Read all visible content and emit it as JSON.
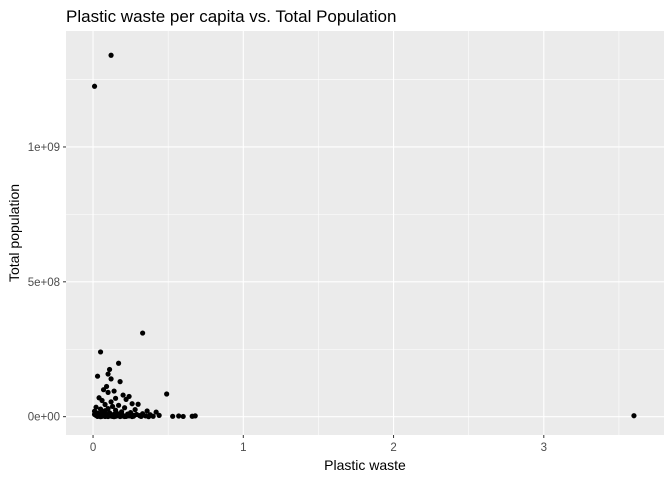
{
  "chart_data": {
    "type": "scatter",
    "title": "Plastic waste per capita vs. Total Population",
    "xlabel": "Plastic waste",
    "ylabel": "Total population",
    "xlim": [
      -0.18,
      3.8
    ],
    "ylim": [
      -68000000,
      1430000000
    ],
    "x_ticks": [
      0,
      1,
      2,
      3
    ],
    "x_tick_labels": [
      "0",
      "1",
      "2",
      "3"
    ],
    "y_ticks": [
      0,
      500000000,
      1000000000
    ],
    "y_tick_labels": [
      "0e+00",
      "5e+08",
      "1e+09"
    ],
    "grid": true,
    "legend": "none",
    "colors": {
      "panel": "#ebebeb",
      "grid_major": "#ffffff",
      "point": "#000000",
      "tick_label": "#4d4d4d"
    },
    "points": [
      [
        0.01,
        1225000000
      ],
      [
        0.12,
        1340000000
      ],
      [
        0.33,
        310000000
      ],
      [
        0.05,
        240000000
      ],
      [
        0.49,
        84000000
      ],
      [
        0.17,
        198000000
      ],
      [
        0.11,
        175000000
      ],
      [
        0.03,
        150000000
      ],
      [
        0.1,
        158000000
      ],
      [
        0.12,
        140000000
      ],
      [
        0.18,
        130000000
      ],
      [
        0.09,
        112000000
      ],
      [
        0.07,
        100000000
      ],
      [
        0.14,
        95000000
      ],
      [
        0.1,
        90000000
      ],
      [
        0.2,
        80000000
      ],
      [
        0.24,
        75000000
      ],
      [
        0.04,
        70000000
      ],
      [
        0.15,
        68000000
      ],
      [
        0.22,
        64000000
      ],
      [
        0.06,
        60000000
      ],
      [
        0.12,
        55000000
      ],
      [
        0.26,
        48000000
      ],
      [
        0.3,
        46000000
      ],
      [
        0.08,
        45000000
      ],
      [
        0.17,
        42000000
      ],
      [
        0.13,
        38000000
      ],
      [
        0.02,
        35000000
      ],
      [
        0.21,
        33000000
      ],
      [
        0.1,
        30000000
      ],
      [
        0.05,
        28000000
      ],
      [
        0.28,
        26000000
      ],
      [
        0.15,
        24000000
      ],
      [
        0.08,
        22000000
      ],
      [
        0.36,
        21000000
      ],
      [
        0.01,
        20000000
      ],
      [
        0.19,
        18000000
      ],
      [
        0.42,
        17000000
      ],
      [
        0.06,
        16000000
      ],
      [
        0.25,
        15000000
      ],
      [
        0.11,
        14000000
      ],
      [
        0.03,
        13000000
      ],
      [
        0.16,
        12000000
      ],
      [
        0.33,
        11000000
      ],
      [
        0.07,
        10000000
      ],
      [
        0.23,
        9500000
      ],
      [
        0.14,
        9000000
      ],
      [
        0.01,
        8500000
      ],
      [
        0.29,
        8000000
      ],
      [
        0.09,
        7500000
      ],
      [
        0.38,
        7000000
      ],
      [
        0.18,
        6500000
      ],
      [
        0.05,
        6000000
      ],
      [
        0.13,
        5500000
      ],
      [
        0.27,
        5000000
      ],
      [
        0.44,
        4800000
      ],
      [
        0.02,
        4500000
      ],
      [
        0.2,
        4200000
      ],
      [
        0.11,
        4000000
      ],
      [
        0.31,
        3800000
      ],
      [
        0.07,
        3500000
      ],
      [
        0.16,
        3200000
      ],
      [
        0.24,
        3000000
      ],
      [
        0.04,
        2800000
      ],
      [
        0.35,
        2600000
      ],
      [
        0.12,
        2400000
      ],
      [
        0.19,
        2200000
      ],
      [
        0.09,
        2000000
      ],
      [
        0.27,
        1800000
      ],
      [
        0.4,
        1600000
      ],
      [
        0.06,
        1500000
      ],
      [
        0.15,
        1300000
      ],
      [
        0.22,
        1100000
      ],
      [
        0.03,
        1000000
      ],
      [
        0.13,
        900000
      ],
      [
        0.32,
        800000
      ],
      [
        0.08,
        700000
      ],
      [
        0.18,
        600000
      ],
      [
        0.26,
        500000
      ],
      [
        0.1,
        400000
      ],
      [
        0.21,
        300000
      ],
      [
        0.05,
        200000
      ],
      [
        0.14,
        100000
      ],
      [
        0.37,
        50000
      ],
      [
        0.53,
        1200000
      ],
      [
        0.57,
        2500000
      ],
      [
        0.6,
        900000
      ],
      [
        0.66,
        1500000
      ],
      [
        0.68,
        3000000
      ],
      [
        3.6,
        3500000
      ]
    ]
  }
}
